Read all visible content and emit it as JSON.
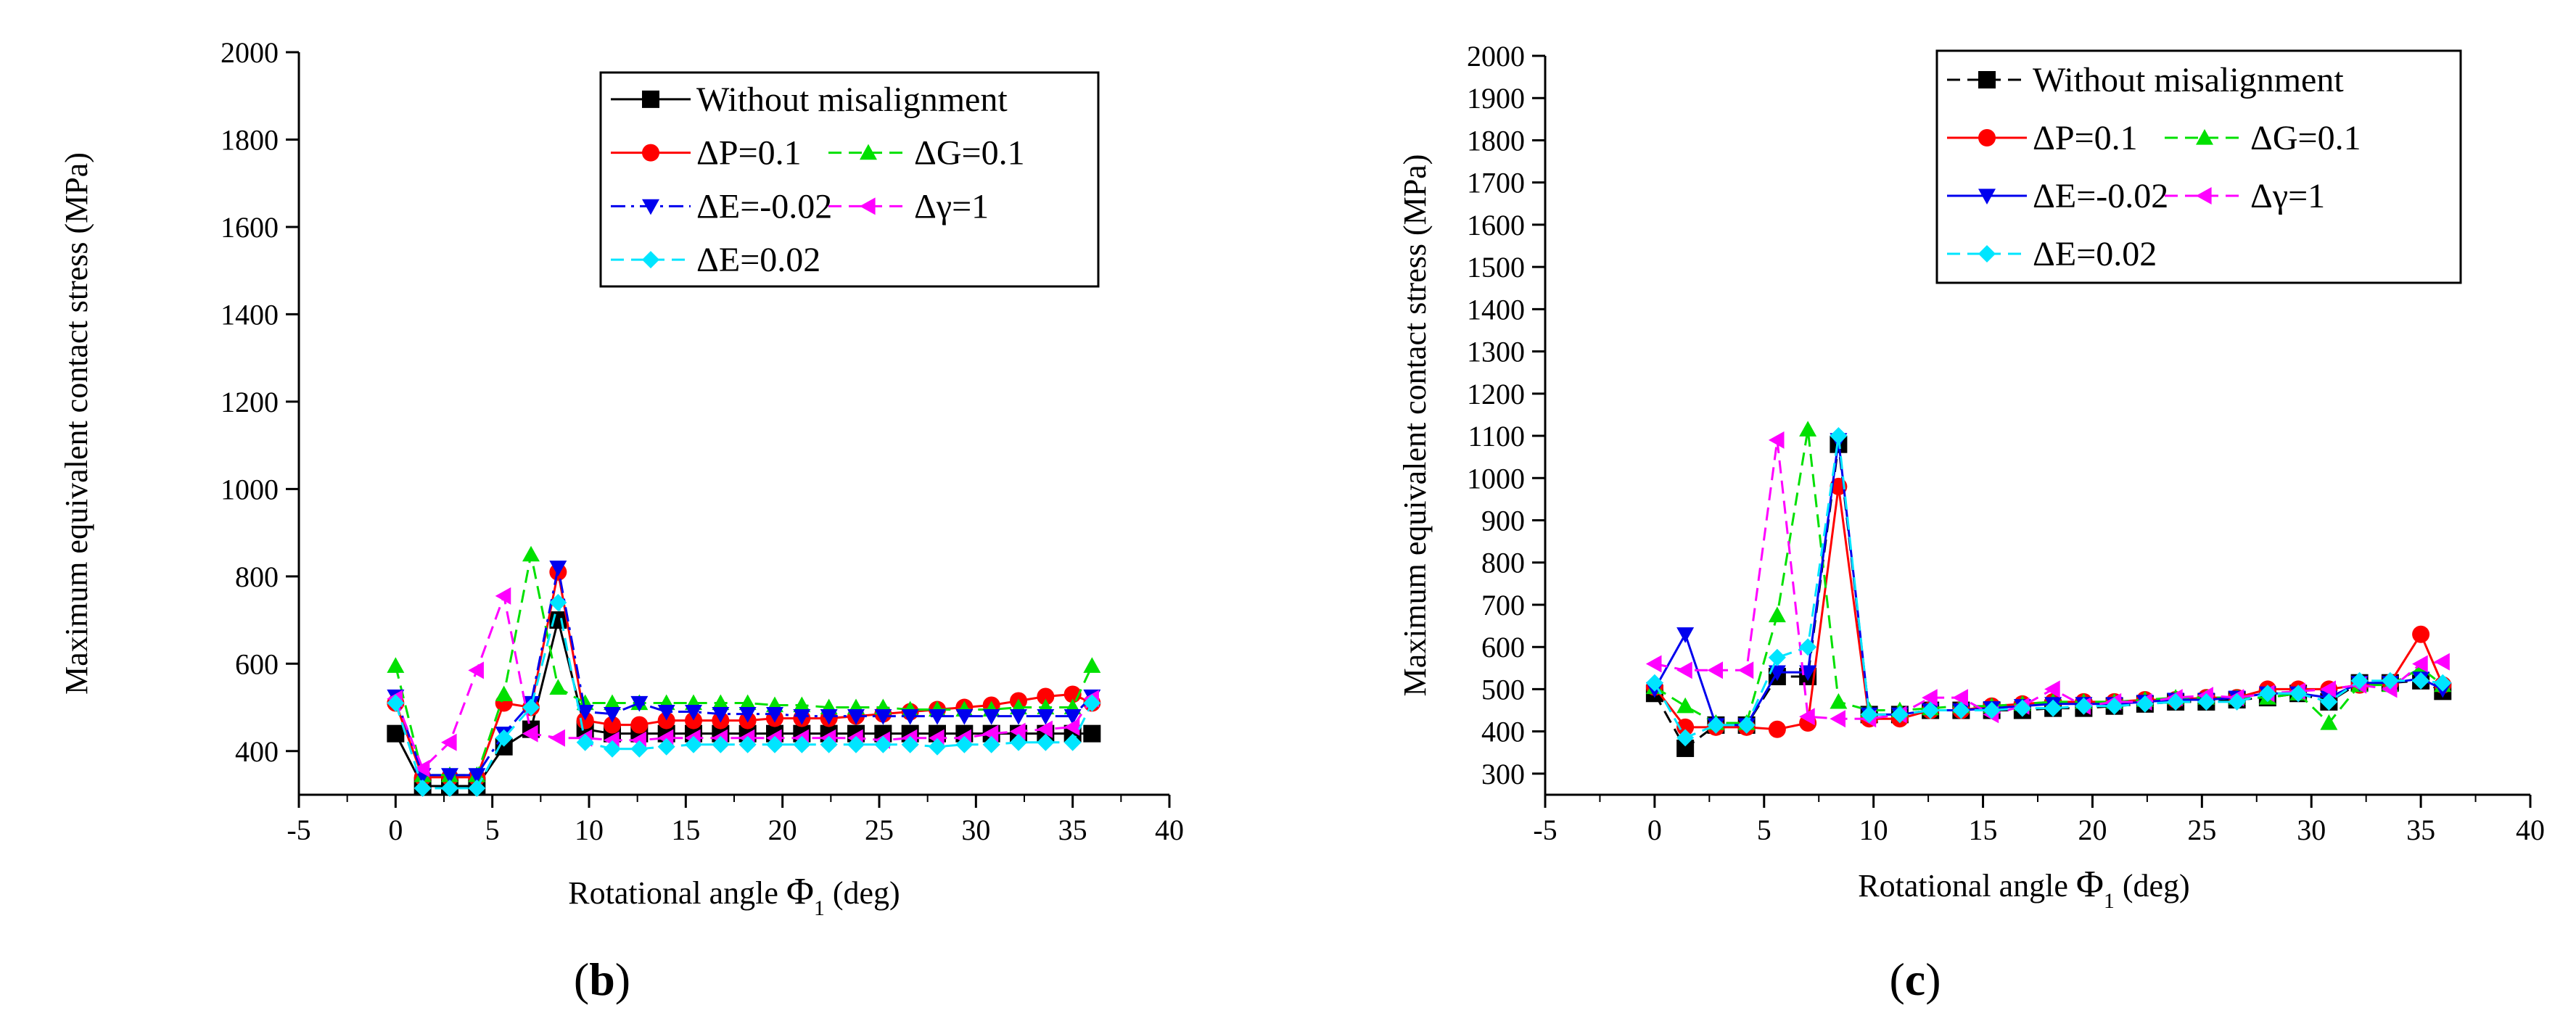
{
  "colors": {
    "without": "#000000",
    "dP": "#ff0000",
    "dG": "#00e000",
    "dEneg": "#0000ee",
    "dGamma": "#ff00ff",
    "dEpos": "#00e5ff"
  },
  "chart_data": [
    {
      "type": "line",
      "panel_label": "(b)",
      "xlabel": "Rotational angle",
      "xlabel_symbol": "Φ",
      "xlabel_subscript": "1",
      "xlabel_unit": "(deg)",
      "ylabel": "Maximum equivalent contact stress (MPa)",
      "xlim": [
        -5,
        40
      ],
      "ylim": [
        300,
        2000
      ],
      "xticks": [
        -5,
        0,
        5,
        10,
        15,
        20,
        25,
        30,
        35,
        40
      ],
      "yticks": [
        400,
        600,
        800,
        1000,
        1200,
        1400,
        1600,
        1800,
        2000
      ],
      "legend_position": "top-right",
      "series": [
        {
          "key": "without",
          "name": "Without misalignment",
          "marker": "square",
          "dash": "solid",
          "color": "#000000",
          "x": [
            0,
            1.4,
            2.8,
            4.2,
            5.6,
            7,
            8.4,
            9.8,
            11.2,
            12.6,
            14,
            15.4,
            16.8,
            18.2,
            19.6,
            21,
            22.4,
            23.8,
            25.2,
            26.6,
            28,
            29.4,
            30.8,
            32.2,
            33.6,
            35,
            36
          ],
          "y": [
            440,
            320,
            320,
            320,
            410,
            450,
            700,
            450,
            440,
            440,
            440,
            440,
            440,
            440,
            440,
            440,
            440,
            440,
            440,
            440,
            440,
            440,
            440,
            440,
            440,
            440,
            440
          ]
        },
        {
          "key": "dP",
          "name": "ΔP=0.1",
          "marker": "circle",
          "dash": "solid",
          "color": "#ff0000",
          "x": [
            0,
            1.4,
            2.8,
            4.2,
            5.6,
            7,
            8.4,
            9.8,
            11.2,
            12.6,
            14,
            15.4,
            16.8,
            18.2,
            19.6,
            21,
            22.4,
            23.8,
            25.2,
            26.6,
            28,
            29.4,
            30.8,
            32.2,
            33.6,
            35,
            36
          ],
          "y": [
            510,
            340,
            340,
            340,
            510,
            500,
            810,
            470,
            460,
            460,
            470,
            470,
            470,
            470,
            475,
            475,
            475,
            480,
            485,
            490,
            495,
            500,
            505,
            515,
            525,
            530,
            510
          ]
        },
        {
          "key": "dG",
          "name": "ΔG=0.1",
          "marker": "triangle-up",
          "dash": "dashed",
          "color": "#00e000",
          "x": [
            0,
            1.4,
            2.8,
            4.2,
            5.6,
            7,
            8.4,
            9.8,
            11.2,
            12.6,
            14,
            15.4,
            16.8,
            18.2,
            19.6,
            21,
            22.4,
            23.8,
            25.2,
            26.6,
            28,
            29.4,
            30.8,
            32.2,
            33.6,
            35,
            36
          ],
          "y": [
            595,
            345,
            345,
            345,
            530,
            850,
            545,
            510,
            510,
            510,
            510,
            510,
            510,
            510,
            505,
            505,
            500,
            500,
            500,
            495,
            495,
            495,
            495,
            500,
            500,
            500,
            595
          ]
        },
        {
          "key": "dEneg",
          "name": "ΔE=-0.02",
          "marker": "triangle-down",
          "dash": "dashdot",
          "color": "#0000ee",
          "x": [
            0,
            1.4,
            2.8,
            4.2,
            5.6,
            7,
            8.4,
            9.8,
            11.2,
            12.6,
            14,
            15.4,
            16.8,
            18.2,
            19.6,
            21,
            22.4,
            23.8,
            25.2,
            26.6,
            28,
            29.4,
            30.8,
            32.2,
            33.6,
            35,
            36
          ],
          "y": [
            525,
            345,
            345,
            345,
            440,
            510,
            820,
            490,
            485,
            510,
            490,
            490,
            485,
            485,
            485,
            480,
            480,
            480,
            480,
            480,
            480,
            480,
            480,
            480,
            480,
            480,
            525
          ]
        },
        {
          "key": "dGamma",
          "name": "Δγ=1",
          "marker": "triangle-left",
          "dash": "dashed",
          "color": "#ff00ff",
          "x": [
            0,
            1.4,
            2.8,
            4.2,
            5.6,
            7,
            8.4,
            9.8,
            11.2,
            12.6,
            14,
            15.4,
            16.8,
            18.2,
            19.6,
            21,
            22.4,
            23.8,
            25.2,
            26.6,
            28,
            29.4,
            30.8,
            32.2,
            33.6,
            35,
            36
          ],
          "y": [
            520,
            360,
            420,
            585,
            755,
            440,
            430,
            430,
            425,
            425,
            430,
            430,
            430,
            430,
            430,
            430,
            430,
            430,
            425,
            430,
            430,
            430,
            440,
            445,
            450,
            455,
            520
          ]
        },
        {
          "key": "dEpos",
          "name": "ΔE=0.02",
          "marker": "diamond",
          "dash": "dashed",
          "color": "#00e5ff",
          "x": [
            0,
            1.4,
            2.8,
            4.2,
            5.6,
            7,
            8.4,
            9.8,
            11.2,
            12.6,
            14,
            15.4,
            16.8,
            18.2,
            19.6,
            21,
            22.4,
            23.8,
            25.2,
            26.6,
            28,
            29.4,
            30.8,
            32.2,
            33.6,
            35,
            36
          ],
          "y": [
            510,
            315,
            315,
            315,
            430,
            500,
            740,
            420,
            405,
            405,
            410,
            415,
            415,
            415,
            415,
            415,
            415,
            415,
            415,
            415,
            410,
            415,
            415,
            420,
            420,
            420,
            510
          ]
        }
      ]
    },
    {
      "type": "line",
      "panel_label": "(c)",
      "xlabel": "Rotational angle",
      "xlabel_symbol": "Φ",
      "xlabel_subscript": "1",
      "xlabel_unit": "(deg)",
      "ylabel": "Maximum equivalent contact stress (MPa)",
      "xlim": [
        -5,
        40
      ],
      "ylim": [
        250,
        2000
      ],
      "xticks": [
        -5,
        0,
        5,
        10,
        15,
        20,
        25,
        30,
        35,
        40
      ],
      "yticks": [
        300,
        400,
        500,
        600,
        700,
        800,
        900,
        1000,
        1100,
        1200,
        1300,
        1400,
        1500,
        1600,
        1700,
        1800,
        1900,
        2000
      ],
      "legend_position": "top-right",
      "series": [
        {
          "key": "without",
          "name": "Without misalignment",
          "marker": "square",
          "dash": "dashed",
          "color": "#000000",
          "x": [
            0,
            1.4,
            2.8,
            4.2,
            5.6,
            7,
            8.4,
            9.8,
            11.2,
            12.6,
            14,
            15.4,
            16.8,
            18.2,
            19.6,
            21,
            22.4,
            23.8,
            25.2,
            26.6,
            28,
            29.4,
            30.8,
            32.2,
            33.6,
            35,
            36
          ],
          "y": [
            490,
            360,
            415,
            415,
            530,
            530,
            1080,
            440,
            440,
            450,
            450,
            450,
            450,
            455,
            455,
            460,
            465,
            470,
            470,
            475,
            480,
            490,
            470,
            515,
            515,
            520,
            495
          ]
        },
        {
          "key": "dP",
          "name": "ΔP=0.1",
          "marker": "circle",
          "dash": "solid",
          "color": "#ff0000",
          "x": [
            0,
            1.4,
            2.8,
            4.2,
            5.6,
            7,
            8.4,
            9.8,
            11.2,
            12.6,
            14,
            15.4,
            16.8,
            18.2,
            19.6,
            21,
            22.4,
            23.8,
            25.2,
            26.6,
            28,
            29.4,
            30.8,
            32.2,
            33.6,
            35,
            36
          ],
          "y": [
            505,
            410,
            410,
            410,
            405,
            420,
            980,
            430,
            430,
            450,
            450,
            460,
            465,
            470,
            470,
            470,
            475,
            475,
            480,
            480,
            500,
            500,
            500,
            510,
            515,
            630,
            510
          ]
        },
        {
          "key": "dG",
          "name": "ΔG=0.1",
          "marker": "triangle-up",
          "dash": "dashed",
          "color": "#00e000",
          "x": [
            0,
            1.4,
            2.8,
            4.2,
            5.6,
            7,
            8.4,
            9.8,
            11.2,
            12.6,
            14,
            15.4,
            16.8,
            18.2,
            19.6,
            21,
            22.4,
            23.8,
            25.2,
            26.6,
            28,
            29.4,
            30.8,
            32.2,
            33.6,
            35,
            36
          ],
          "y": [
            505,
            460,
            420,
            420,
            675,
            1115,
            470,
            450,
            450,
            455,
            460,
            460,
            465,
            470,
            470,
            470,
            475,
            480,
            480,
            480,
            480,
            490,
            420,
            510,
            510,
            550,
            510
          ]
        },
        {
          "key": "dEneg",
          "name": "ΔE=-0.02",
          "marker": "triangle-down",
          "dash": "solid",
          "color": "#0000ee",
          "x": [
            0,
            1.4,
            2.8,
            4.2,
            5.6,
            7,
            8.4,
            9.8,
            11.2,
            12.6,
            14,
            15.4,
            16.8,
            18.2,
            19.6,
            21,
            22.4,
            23.8,
            25.2,
            26.6,
            28,
            29.4,
            30.8,
            32.2,
            33.6,
            35,
            36
          ],
          "y": [
            500,
            630,
            415,
            415,
            540,
            540,
            1090,
            440,
            440,
            450,
            450,
            455,
            460,
            465,
            465,
            465,
            470,
            475,
            475,
            480,
            490,
            490,
            480,
            515,
            515,
            525,
            500
          ]
        },
        {
          "key": "dGamma",
          "name": "Δγ=1",
          "marker": "triangle-left",
          "dash": "dashed",
          "color": "#ff00ff",
          "x": [
            0,
            1.4,
            2.8,
            4.2,
            5.6,
            7,
            8.4,
            9.8,
            11.2,
            12.6,
            14,
            15.4,
            16.8,
            18.2,
            19.6,
            21,
            22.4,
            23.8,
            25.2,
            26.6,
            28,
            29.4,
            30.8,
            32.2,
            33.6,
            35,
            36
          ],
          "y": [
            560,
            545,
            545,
            545,
            1090,
            435,
            430,
            430,
            440,
            480,
            480,
            440,
            460,
            500,
            460,
            470,
            470,
            480,
            485,
            480,
            490,
            495,
            500,
            510,
            500,
            560,
            565
          ]
        },
        {
          "key": "dEpos",
          "name": "ΔE=0.02",
          "marker": "diamond",
          "dash": "dashed",
          "color": "#00e5ff",
          "x": [
            0,
            1.4,
            2.8,
            4.2,
            5.6,
            7,
            8.4,
            9.8,
            11.2,
            12.6,
            14,
            15.4,
            16.8,
            18.2,
            19.6,
            21,
            22.4,
            23.8,
            25.2,
            26.6,
            28,
            29.4,
            30.8,
            32.2,
            33.6,
            35,
            36
          ],
          "y": [
            515,
            385,
            415,
            415,
            575,
            600,
            1100,
            440,
            440,
            450,
            450,
            450,
            455,
            455,
            460,
            460,
            465,
            470,
            470,
            470,
            490,
            490,
            470,
            520,
            520,
            520,
            515
          ]
        }
      ]
    }
  ]
}
